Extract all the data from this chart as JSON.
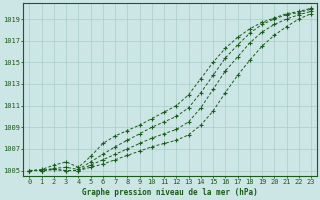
{
  "xlabel": "Graphe pression niveau de la mer (hPa)",
  "bg_color": "#cce5e5",
  "line_color": "#1a5c1a",
  "grid_color": "#aacccc",
  "ylim": [
    1004.5,
    1020.5
  ],
  "xlim": [
    -0.5,
    23.5
  ],
  "y_ticks": [
    1005,
    1007,
    1009,
    1011,
    1013,
    1015,
    1017,
    1019
  ],
  "x_ticks": [
    0,
    1,
    2,
    3,
    4,
    5,
    6,
    7,
    8,
    9,
    10,
    11,
    12,
    13,
    14,
    15,
    16,
    17,
    18,
    19,
    20,
    21,
    22,
    23
  ],
  "lines": [
    [
      1005.0,
      1005.0,
      1005.1,
      1005.0,
      1005.0,
      1005.3,
      1005.6,
      1006.0,
      1006.4,
      1006.8,
      1007.2,
      1007.5,
      1007.8,
      1008.3,
      1009.2,
      1010.5,
      1012.2,
      1013.8,
      1015.2,
      1016.5,
      1017.5,
      1018.3,
      1019.0,
      1019.5
    ],
    [
      1005.0,
      1005.0,
      1005.1,
      1005.0,
      1005.0,
      1005.5,
      1006.0,
      1006.5,
      1007.0,
      1007.5,
      1008.0,
      1008.4,
      1008.8,
      1009.5,
      1010.8,
      1012.5,
      1014.2,
      1015.5,
      1016.8,
      1017.8,
      1018.5,
      1019.0,
      1019.4,
      1019.7
    ],
    [
      1005.0,
      1005.0,
      1005.2,
      1005.3,
      1005.1,
      1005.8,
      1006.5,
      1007.2,
      1007.8,
      1008.4,
      1009.0,
      1009.5,
      1010.0,
      1010.8,
      1012.2,
      1013.8,
      1015.4,
      1016.6,
      1017.7,
      1018.5,
      1019.0,
      1019.4,
      1019.6,
      1019.9
    ],
    [
      1005.0,
      1005.1,
      1005.5,
      1005.8,
      1005.3,
      1006.3,
      1007.5,
      1008.2,
      1008.7,
      1009.2,
      1009.8,
      1010.4,
      1011.0,
      1012.0,
      1013.5,
      1015.0,
      1016.3,
      1017.3,
      1018.1,
      1018.7,
      1019.1,
      1019.5,
      1019.7,
      1020.0
    ]
  ]
}
